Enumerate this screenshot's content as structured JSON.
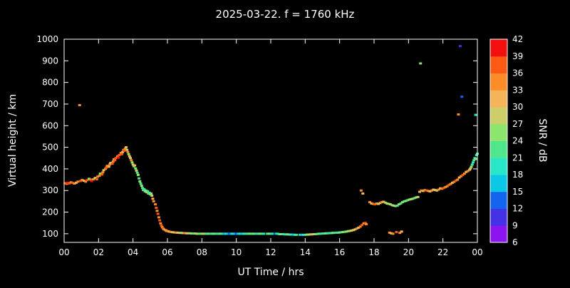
{
  "colors": {
    "background": "#000000",
    "foreground": "#ffffff"
  },
  "chart_data": {
    "type": "scatter",
    "title": "2025-03-22. f = 1760 kHz",
    "xlabel": "UT Time / hrs",
    "ylabel": "Virtual height / km",
    "colorbar_label": "SNR / dB",
    "xlim": [
      0,
      24
    ],
    "ylim": [
      60,
      1000
    ],
    "x_ticks": [
      0,
      2,
      4,
      6,
      8,
      10,
      12,
      14,
      16,
      18,
      20,
      22,
      24
    ],
    "x_tick_labels": [
      "00",
      "02",
      "04",
      "06",
      "08",
      "10",
      "12",
      "14",
      "16",
      "18",
      "20",
      "22",
      "00"
    ],
    "y_ticks": [
      100,
      200,
      300,
      400,
      500,
      600,
      700,
      800,
      900,
      1000
    ],
    "grid": false,
    "colorbar": {
      "min": 6,
      "max": 42,
      "tick_values": [
        6,
        9,
        12,
        15,
        18,
        21,
        24,
        27,
        30,
        33,
        36,
        39,
        42
      ],
      "band_colors_low_to_high": [
        "#8c14f0",
        "#4632e6",
        "#1464f0",
        "#0ac8e6",
        "#28e6c8",
        "#50e68c",
        "#8ce66e",
        "#cdcd69",
        "#f5b45a",
        "#fb8c28",
        "#fa5a14",
        "#f51010"
      ]
    },
    "points": [
      [
        0.05,
        334,
        36
      ],
      [
        0.15,
        331,
        33
      ],
      [
        0.2,
        336,
        39
      ],
      [
        0.3,
        333,
        36
      ],
      [
        0.4,
        338,
        33
      ],
      [
        0.5,
        335,
        36
      ],
      [
        0.6,
        332,
        33
      ],
      [
        0.7,
        336,
        30
      ],
      [
        0.8,
        341,
        33
      ],
      [
        0.9,
        695,
        33
      ],
      [
        0.95,
        344,
        36
      ],
      [
        1.05,
        349,
        33
      ],
      [
        1.15,
        345,
        30
      ],
      [
        1.25,
        341,
        33
      ],
      [
        1.35,
        348,
        36
      ],
      [
        1.45,
        354,
        24
      ],
      [
        1.55,
        350,
        33
      ],
      [
        1.6,
        344,
        39
      ],
      [
        1.7,
        352,
        33
      ],
      [
        1.8,
        358,
        27
      ],
      [
        1.9,
        352,
        36
      ],
      [
        1.95,
        364,
        33
      ],
      [
        2.05,
        368,
        33
      ],
      [
        2.1,
        378,
        24
      ],
      [
        2.2,
        374,
        36
      ],
      [
        2.25,
        384,
        33
      ],
      [
        2.3,
        394,
        27
      ],
      [
        2.4,
        400,
        33
      ],
      [
        2.45,
        406,
        36
      ],
      [
        2.5,
        414,
        33
      ],
      [
        2.6,
        410,
        30
      ],
      [
        2.65,
        420,
        33
      ],
      [
        2.7,
        428,
        27
      ],
      [
        2.8,
        424,
        36
      ],
      [
        2.85,
        434,
        33
      ],
      [
        2.9,
        444,
        30
      ],
      [
        2.95,
        440,
        36
      ],
      [
        3.0,
        450,
        36
      ],
      [
        3.1,
        458,
        33
      ],
      [
        3.15,
        452,
        39
      ],
      [
        3.2,
        464,
        36
      ],
      [
        3.3,
        474,
        33
      ],
      [
        3.35,
        468,
        36
      ],
      [
        3.4,
        478,
        30
      ],
      [
        3.45,
        488,
        33
      ],
      [
        3.5,
        484,
        36
      ],
      [
        3.55,
        494,
        33
      ],
      [
        3.6,
        500,
        30
      ],
      [
        3.65,
        488,
        27
      ],
      [
        3.7,
        478,
        33
      ],
      [
        3.75,
        468,
        24
      ],
      [
        3.8,
        458,
        30
      ],
      [
        3.85,
        450,
        27
      ],
      [
        3.9,
        440,
        33
      ],
      [
        3.95,
        430,
        24
      ],
      [
        4.0,
        420,
        27
      ],
      [
        4.05,
        412,
        21
      ],
      [
        4.1,
        416,
        30
      ],
      [
        4.15,
        402,
        24
      ],
      [
        4.2,
        392,
        27
      ],
      [
        4.25,
        382,
        21
      ],
      [
        4.3,
        372,
        24
      ],
      [
        4.35,
        356,
        21
      ],
      [
        4.4,
        342,
        24
      ],
      [
        4.45,
        332,
        21
      ],
      [
        4.5,
        322,
        24
      ],
      [
        4.55,
        312,
        21
      ],
      [
        4.6,
        302,
        24
      ],
      [
        4.65,
        306,
        18
      ],
      [
        4.7,
        296,
        21
      ],
      [
        4.75,
        300,
        24
      ],
      [
        4.8,
        292,
        27
      ],
      [
        4.85,
        296,
        21
      ],
      [
        4.9,
        286,
        24
      ],
      [
        4.95,
        290,
        18
      ],
      [
        5.0,
        282,
        21
      ],
      [
        5.05,
        286,
        24
      ],
      [
        5.1,
        276,
        27
      ],
      [
        5.15,
        262,
        30
      ],
      [
        5.2,
        250,
        33
      ],
      [
        5.3,
        236,
        33
      ],
      [
        5.35,
        220,
        36
      ],
      [
        5.4,
        206,
        33
      ],
      [
        5.45,
        192,
        36
      ],
      [
        5.5,
        176,
        33
      ],
      [
        5.55,
        162,
        36
      ],
      [
        5.6,
        148,
        33
      ],
      [
        5.65,
        138,
        36
      ],
      [
        5.7,
        130,
        33
      ],
      [
        5.75,
        124,
        36
      ],
      [
        5.8,
        120,
        33
      ],
      [
        5.9,
        116,
        30
      ],
      [
        5.95,
        113,
        33
      ],
      [
        6.0,
        112,
        33
      ],
      [
        6.1,
        110,
        30
      ],
      [
        6.2,
        108,
        33
      ],
      [
        6.3,
        107,
        27
      ],
      [
        6.4,
        106,
        30
      ],
      [
        6.5,
        105,
        33
      ],
      [
        6.6,
        105,
        27
      ],
      [
        6.7,
        104,
        30
      ],
      [
        6.8,
        104,
        24
      ],
      [
        6.9,
        103,
        27
      ],
      [
        7.0,
        103,
        33
      ],
      [
        7.1,
        102,
        30
      ],
      [
        7.2,
        102,
        27
      ],
      [
        7.3,
        102,
        24
      ],
      [
        7.4,
        101,
        27
      ],
      [
        7.5,
        101,
        21
      ],
      [
        7.6,
        101,
        24
      ],
      [
        7.7,
        100,
        27
      ],
      [
        7.8,
        100,
        24
      ],
      [
        7.9,
        100,
        21
      ],
      [
        8.0,
        100,
        24
      ],
      [
        8.1,
        100,
        27
      ],
      [
        8.2,
        100,
        24
      ],
      [
        8.3,
        100,
        21
      ],
      [
        8.4,
        100,
        24
      ],
      [
        8.5,
        100,
        18
      ],
      [
        8.6,
        100,
        21
      ],
      [
        8.7,
        100,
        24
      ],
      [
        8.8,
        100,
        21
      ],
      [
        8.9,
        100,
        18
      ],
      [
        9.0,
        100,
        21
      ],
      [
        9.1,
        100,
        24
      ],
      [
        9.2,
        100,
        18
      ],
      [
        9.3,
        100,
        15
      ],
      [
        9.4,
        100,
        18
      ],
      [
        9.5,
        100,
        15
      ],
      [
        9.6,
        100,
        12
      ],
      [
        9.7,
        100,
        15
      ],
      [
        9.8,
        100,
        18
      ],
      [
        9.9,
        100,
        15
      ],
      [
        10.0,
        100,
        12
      ],
      [
        10.1,
        100,
        15
      ],
      [
        10.2,
        100,
        18
      ],
      [
        10.3,
        100,
        15
      ],
      [
        10.4,
        100,
        18
      ],
      [
        10.5,
        100,
        21
      ],
      [
        10.6,
        100,
        18
      ],
      [
        10.7,
        100,
        21
      ],
      [
        10.8,
        100,
        24
      ],
      [
        10.9,
        100,
        21
      ],
      [
        11.0,
        100,
        24
      ],
      [
        11.1,
        100,
        21
      ],
      [
        11.2,
        100,
        18
      ],
      [
        11.3,
        100,
        21
      ],
      [
        11.4,
        100,
        24
      ],
      [
        11.5,
        100,
        21
      ],
      [
        11.6,
        100,
        18
      ],
      [
        11.8,
        100,
        21
      ],
      [
        11.9,
        100,
        24
      ],
      [
        12.0,
        100,
        21
      ],
      [
        12.1,
        100,
        18
      ],
      [
        12.3,
        100,
        15
      ],
      [
        12.4,
        100,
        18
      ],
      [
        12.5,
        98,
        21
      ],
      [
        12.6,
        98,
        24
      ],
      [
        12.7,
        98,
        21
      ],
      [
        12.8,
        97,
        18
      ],
      [
        12.9,
        97,
        21
      ],
      [
        13.0,
        97,
        24
      ],
      [
        13.1,
        96,
        21
      ],
      [
        13.2,
        96,
        18
      ],
      [
        13.3,
        96,
        15
      ],
      [
        13.4,
        95,
        18
      ],
      [
        13.5,
        95,
        21
      ],
      [
        13.7,
        95,
        18
      ],
      [
        13.8,
        95,
        15
      ],
      [
        13.9,
        95,
        18
      ],
      [
        14.0,
        95,
        21
      ],
      [
        14.1,
        96,
        24
      ],
      [
        14.2,
        96,
        27
      ],
      [
        14.3,
        97,
        24
      ],
      [
        14.4,
        97,
        30
      ],
      [
        14.5,
        98,
        27
      ],
      [
        14.6,
        98,
        24
      ],
      [
        14.7,
        99,
        21
      ],
      [
        14.8,
        100,
        24
      ],
      [
        14.9,
        100,
        21
      ],
      [
        15.0,
        101,
        18
      ],
      [
        15.1,
        101,
        21
      ],
      [
        15.2,
        102,
        24
      ],
      [
        15.3,
        102,
        21
      ],
      [
        15.4,
        103,
        18
      ],
      [
        15.5,
        103,
        21
      ],
      [
        15.6,
        104,
        24
      ],
      [
        15.7,
        104,
        21
      ],
      [
        15.8,
        105,
        18
      ],
      [
        15.9,
        105,
        21
      ],
      [
        16.0,
        106,
        24
      ],
      [
        16.1,
        107,
        21
      ],
      [
        16.2,
        108,
        24
      ],
      [
        16.3,
        109,
        21
      ],
      [
        16.4,
        110,
        24
      ],
      [
        16.5,
        112,
        27
      ],
      [
        16.6,
        113,
        24
      ],
      [
        16.7,
        115,
        27
      ],
      [
        16.8,
        117,
        30
      ],
      [
        16.9,
        120,
        27
      ],
      [
        17.0,
        124,
        33
      ],
      [
        17.1,
        128,
        30
      ],
      [
        17.2,
        133,
        33
      ],
      [
        17.25,
        300,
        33
      ],
      [
        17.3,
        140,
        36
      ],
      [
        17.35,
        286,
        30
      ],
      [
        17.4,
        148,
        33
      ],
      [
        17.5,
        150,
        36
      ],
      [
        17.55,
        144,
        33
      ],
      [
        17.75,
        246,
        33
      ],
      [
        17.85,
        240,
        30
      ],
      [
        17.95,
        238,
        33
      ],
      [
        18.05,
        236,
        36
      ],
      [
        18.15,
        240,
        33
      ],
      [
        18.25,
        238,
        27
      ],
      [
        18.35,
        242,
        30
      ],
      [
        18.45,
        246,
        33
      ],
      [
        18.55,
        248,
        30
      ],
      [
        18.65,
        244,
        24
      ],
      [
        18.75,
        240,
        27
      ],
      [
        18.85,
        238,
        24
      ],
      [
        18.9,
        105,
        33
      ],
      [
        18.95,
        236,
        27
      ],
      [
        19.0,
        102,
        30
      ],
      [
        19.05,
        232,
        24
      ],
      [
        19.1,
        100,
        33
      ],
      [
        19.15,
        230,
        27
      ],
      [
        19.25,
        228,
        24
      ],
      [
        19.3,
        108,
        36
      ],
      [
        19.35,
        230,
        21
      ],
      [
        19.45,
        236,
        24
      ],
      [
        19.5,
        104,
        33
      ],
      [
        19.6,
        110,
        30
      ],
      [
        19.55,
        240,
        21
      ],
      [
        19.65,
        246,
        24
      ],
      [
        19.75,
        250,
        21
      ],
      [
        19.85,
        252,
        24
      ],
      [
        19.95,
        255,
        21
      ],
      [
        20.05,
        258,
        24
      ],
      [
        20.15,
        260,
        27
      ],
      [
        20.25,
        262,
        24
      ],
      [
        20.35,
        265,
        21
      ],
      [
        20.45,
        268,
        24
      ],
      [
        20.55,
        270,
        27
      ],
      [
        20.7,
        888,
        24
      ],
      [
        20.65,
        294,
        30
      ],
      [
        20.75,
        300,
        33
      ],
      [
        20.85,
        298,
        30
      ],
      [
        20.95,
        302,
        33
      ],
      [
        21.05,
        300,
        36
      ],
      [
        21.15,
        298,
        33
      ],
      [
        21.25,
        296,
        30
      ],
      [
        21.35,
        300,
        33
      ],
      [
        21.45,
        304,
        30
      ],
      [
        21.55,
        302,
        27
      ],
      [
        21.65,
        300,
        30
      ],
      [
        21.75,
        304,
        33
      ],
      [
        21.85,
        310,
        30
      ],
      [
        21.95,
        308,
        33
      ],
      [
        22.05,
        312,
        36
      ],
      [
        22.15,
        316,
        33
      ],
      [
        22.25,
        320,
        33
      ],
      [
        22.35,
        326,
        36
      ],
      [
        22.45,
        330,
        33
      ],
      [
        22.55,
        336,
        30
      ],
      [
        22.65,
        340,
        33
      ],
      [
        22.75,
        346,
        36
      ],
      [
        22.85,
        350,
        33
      ],
      [
        22.9,
        652,
        33
      ],
      [
        22.95,
        360,
        30
      ],
      [
        23.0,
        968,
        9
      ],
      [
        23.05,
        366,
        33
      ],
      [
        23.1,
        734,
        12
      ],
      [
        23.15,
        372,
        36
      ],
      [
        23.25,
        378,
        33
      ],
      [
        23.35,
        386,
        30
      ],
      [
        23.45,
        390,
        33
      ],
      [
        23.55,
        396,
        30
      ],
      [
        23.6,
        402,
        27
      ],
      [
        23.65,
        410,
        24
      ],
      [
        23.7,
        420,
        21
      ],
      [
        23.75,
        430,
        18
      ],
      [
        23.8,
        440,
        21
      ],
      [
        23.85,
        450,
        18
      ],
      [
        23.9,
        446,
        24
      ],
      [
        23.9,
        650,
        18
      ],
      [
        23.95,
        464,
        18
      ],
      [
        24.0,
        470,
        21
      ]
    ]
  }
}
